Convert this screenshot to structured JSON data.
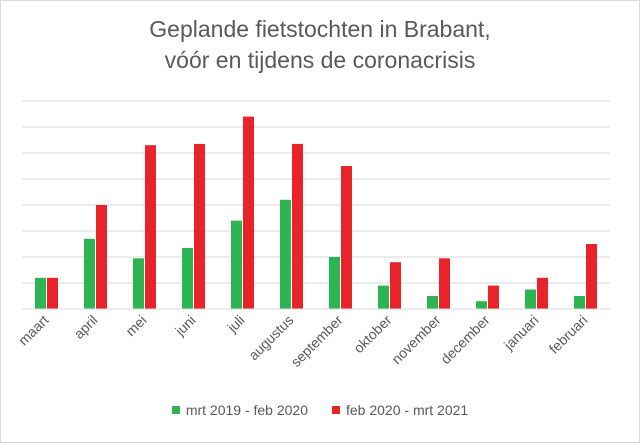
{
  "chart_data": {
    "type": "bar",
    "title_line1": "Geplande fietstochten in Brabant,",
    "title_line2": "vóór en tijdens de coronacrisis",
    "categories": [
      "maart",
      "april",
      "mei",
      "juni",
      "juli",
      "augustus",
      "september",
      "oktober",
      "november",
      "december",
      "januari",
      "februari"
    ],
    "series": [
      {
        "name": "mrt 2019 - feb 2020",
        "color": "#2eb553",
        "values": [
          1.2,
          2.7,
          1.95,
          2.35,
          3.4,
          4.2,
          2.0,
          0.9,
          0.5,
          0.3,
          0.75,
          0.5
        ]
      },
      {
        "name": "feb 2020 - mrt 2021",
        "color": "#e8232a",
        "values": [
          1.2,
          4.0,
          6.3,
          6.35,
          7.4,
          6.35,
          5.5,
          1.8,
          1.95,
          0.9,
          1.2,
          2.5
        ]
      }
    ],
    "ylim": [
      0,
      8
    ],
    "gridlines": 8,
    "xlabel": "",
    "ylabel": ""
  }
}
